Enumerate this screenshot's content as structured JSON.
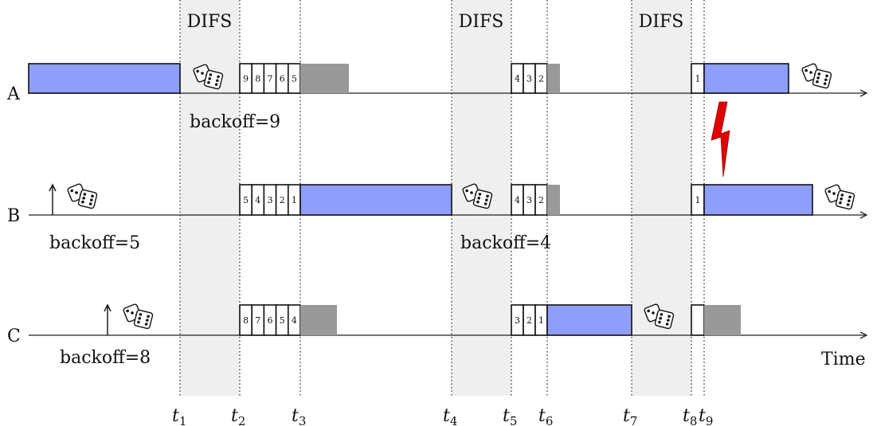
{
  "colors": {
    "difs_band": "#efefef",
    "transmission": "#8f9efa",
    "stall": "#999999",
    "axis": "#222222",
    "collision": "#e00000"
  },
  "difs_label": "DIFS",
  "time_label": "Time",
  "stations": [
    {
      "name": "A",
      "backoff_label": "backoff=9"
    },
    {
      "name": "B",
      "backoff_label": "backoff=5",
      "backoff_label_2": "backoff=4"
    },
    {
      "name": "C",
      "backoff_label": "backoff=8"
    }
  ],
  "time_markers": [
    {
      "t": "t",
      "sub": "1"
    },
    {
      "t": "t",
      "sub": "2"
    },
    {
      "t": "t",
      "sub": "3"
    },
    {
      "t": "t",
      "sub": "4"
    },
    {
      "t": "t",
      "sub": "5"
    },
    {
      "t": "t",
      "sub": "6"
    },
    {
      "t": "t",
      "sub": "7"
    },
    {
      "t": "t",
      "sub": "8"
    },
    {
      "t": "t",
      "sub": "9"
    }
  ],
  "counters": {
    "A1": [
      "9",
      "8",
      "7",
      "6",
      "5"
    ],
    "A2": [
      "4",
      "3",
      "2"
    ],
    "A3": [
      "1"
    ],
    "B1": [
      "5",
      "4",
      "3",
      "2",
      "1"
    ],
    "B2": [
      "4",
      "3",
      "2"
    ],
    "B3": [
      "1"
    ],
    "C1": [
      "8",
      "7",
      "6",
      "5",
      "4"
    ],
    "C2": [
      "3",
      "2",
      "1"
    ],
    "C3": [
      ""
    ]
  },
  "icons": [
    "dice-icon",
    "arrival-arrow-icon",
    "collision-lightning-icon"
  ]
}
